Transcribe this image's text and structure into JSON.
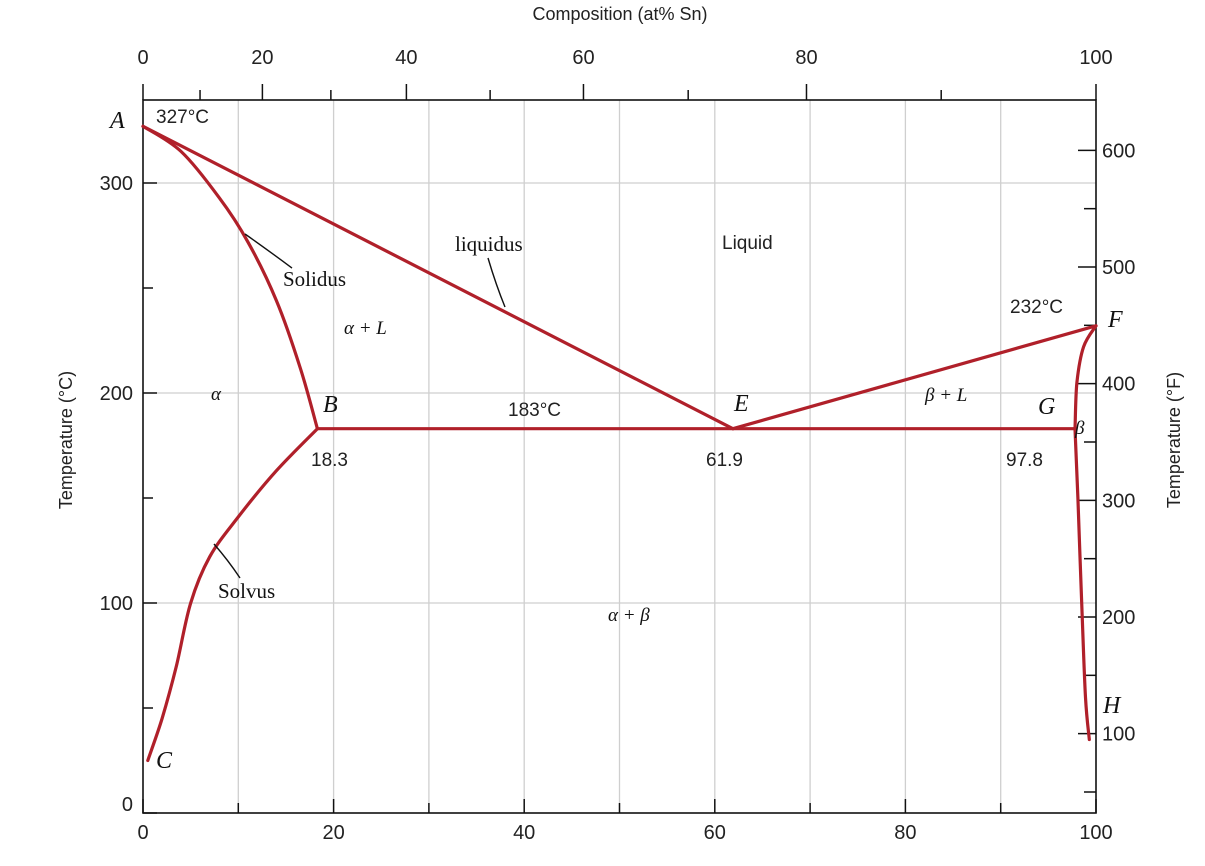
{
  "chart_data": {
    "type": "line",
    "title": "",
    "xlabel_top": "Composition (at% Sn)",
    "xlabel_bottom": "",
    "ylabel_left": "Temperature (°C)",
    "ylabel_right": "Temperature (°F)",
    "xlim": [
      0,
      100
    ],
    "ylim_c": [
      0,
      340
    ],
    "x_ticks_top": [
      {
        "value": 0,
        "label": "0"
      },
      {
        "value": 20,
        "label": "20"
      },
      {
        "value": 40,
        "label": "40"
      },
      {
        "value": 60,
        "label": "60"
      },
      {
        "value": 80,
        "label": "80"
      },
      {
        "value": 100,
        "label": "100"
      }
    ],
    "x_ticks_bottom": [
      {
        "value": 0,
        "label": "0"
      },
      {
        "value": 20,
        "label": "20"
      },
      {
        "value": 40,
        "label": "40"
      },
      {
        "value": 60,
        "label": "60"
      },
      {
        "value": 80,
        "label": "80"
      },
      {
        "value": 100,
        "label": "100"
      }
    ],
    "y_ticks_left": [
      {
        "value": 0,
        "label": "0"
      },
      {
        "value": 100,
        "label": "100"
      },
      {
        "value": 200,
        "label": "200"
      },
      {
        "value": 300,
        "label": "300"
      }
    ],
    "y_ticks_right_f": [
      {
        "value": 100,
        "label": "100"
      },
      {
        "value": 200,
        "label": "200"
      },
      {
        "value": 300,
        "label": "300"
      },
      {
        "value": 400,
        "label": "400"
      },
      {
        "value": 500,
        "label": "500"
      },
      {
        "value": 600,
        "label": "600"
      }
    ],
    "grid": true,
    "series": [
      {
        "points": [
          [
            0,
            327
          ],
          [
            61.9,
            183
          ]
        ]
      },
      {
        "points": [
          [
            0,
            327
          ],
          [
            4,
            315
          ],
          [
            8,
            293
          ],
          [
            11,
            272
          ],
          [
            14,
            244
          ],
          [
            16.5,
            212
          ],
          [
            18.3,
            183
          ]
        ]
      },
      {
        "points": [
          [
            18.3,
            183
          ],
          [
            14,
            163
          ],
          [
            10,
            141
          ],
          [
            7,
            122
          ],
          [
            5,
            100
          ],
          [
            3.5,
            70
          ],
          [
            2,
            45
          ],
          [
            0.5,
            25
          ]
        ]
      },
      {
        "points": [
          [
            18.3,
            183
          ],
          [
            97.8,
            183
          ]
        ]
      },
      {
        "points": [
          [
            61.9,
            183
          ],
          [
            100,
            232
          ]
        ]
      },
      {
        "points": [
          [
            100,
            232
          ],
          [
            98.7,
            222
          ],
          [
            98.0,
            205
          ],
          [
            97.8,
            183
          ]
        ]
      },
      {
        "points": [
          [
            97.8,
            183
          ],
          [
            98.1,
            150
          ],
          [
            98.5,
            100
          ],
          [
            98.9,
            55
          ],
          [
            99.3,
            35
          ]
        ]
      }
    ],
    "points_labeled": [
      {
        "name": "A",
        "x": 0,
        "y": 327
      },
      {
        "name": "B",
        "x": 18.3,
        "y": 183
      },
      {
        "name": "C",
        "x": 0.5,
        "y": 25
      },
      {
        "name": "E",
        "x": 61.9,
        "y": 183
      },
      {
        "name": "F",
        "x": 100,
        "y": 232
      },
      {
        "name": "G",
        "x": 97.8,
        "y": 183
      },
      {
        "name": "H",
        "x": 99.3,
        "y": 35
      }
    ],
    "annotations": {
      "temp_a": "327°C",
      "temp_f": "232°C",
      "temp_eutectic": "183°C",
      "comp_b": "18.3",
      "comp_e": "61.9",
      "comp_g": "97.8",
      "liquidus": "liquidus",
      "solidus": "Solidus",
      "solvus": "Solvus",
      "region_liquid": "Liquid",
      "region_alpha": "α",
      "region_alpha_l": "α + L",
      "region_beta_l": "β + L",
      "region_beta": "β",
      "region_alpha_beta": "α + β"
    }
  }
}
